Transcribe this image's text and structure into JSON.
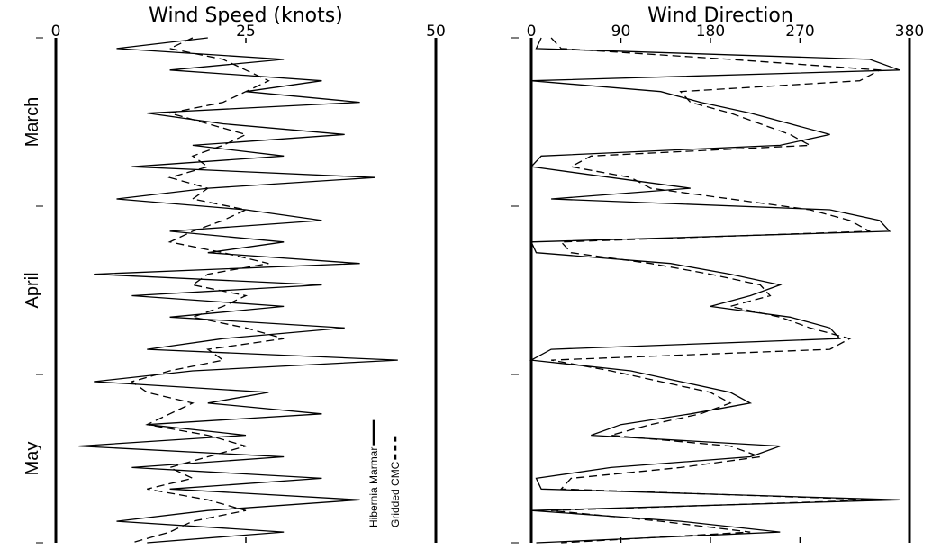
{
  "charts": [
    {
      "type": "line",
      "orientation": "vertical",
      "title": "Wind Speed (knots)",
      "categories": [
        "March",
        "April",
        "May"
      ],
      "xlim": [
        0,
        50
      ],
      "xticks": [
        0,
        25,
        50
      ],
      "series": [
        {
          "name": "Hibernia Marmar",
          "color": "#000000",
          "style": "solid",
          "values": [
            20,
            8,
            30,
            15,
            35,
            25,
            40,
            12,
            22,
            38,
            18,
            30,
            10,
            42,
            20,
            8,
            25,
            35,
            15,
            30,
            20,
            40,
            5,
            35,
            10,
            30,
            15,
            38,
            22,
            12,
            45,
            18,
            5,
            28,
            20,
            35,
            12,
            25,
            3,
            30,
            10,
            35,
            15,
            40,
            20,
            8,
            30,
            12
          ]
        },
        {
          "name": "Gridded CMC",
          "color": "#000000",
          "style": "dashed",
          "values": [
            18,
            15,
            22,
            25,
            28,
            25,
            22,
            15,
            20,
            25,
            22,
            18,
            20,
            15,
            20,
            18,
            25,
            22,
            18,
            15,
            22,
            28,
            20,
            18,
            25,
            22,
            18,
            25,
            30,
            20,
            22,
            15,
            10,
            12,
            18,
            15,
            12,
            20,
            25,
            20,
            15,
            18,
            12,
            20,
            25,
            18,
            15,
            10
          ]
        }
      ]
    },
    {
      "type": "line",
      "orientation": "vertical",
      "title": "Wind Direction",
      "xlim": [
        0,
        380
      ],
      "xticks": [
        0,
        90,
        180,
        270,
        380
      ],
      "series": [
        {
          "name": "Hibernia Marmar",
          "color": "#000000",
          "style": "solid",
          "values": [
            10,
            5,
            340,
            370,
            0,
            130,
            170,
            220,
            260,
            300,
            250,
            10,
            0,
            80,
            160,
            20,
            300,
            350,
            360,
            0,
            5,
            140,
            200,
            250,
            220,
            180,
            260,
            300,
            310,
            20,
            0,
            100,
            150,
            200,
            220,
            160,
            90,
            60,
            250,
            220,
            80,
            5,
            10,
            370,
            0,
            150,
            250,
            5
          ]
        },
        {
          "name": "Gridded CMC",
          "color": "#000000",
          "style": "dashed",
          "values": [
            20,
            30,
            200,
            350,
            330,
            150,
            160,
            200,
            230,
            260,
            280,
            60,
            40,
            100,
            120,
            200,
            280,
            320,
            340,
            30,
            40,
            120,
            180,
            230,
            240,
            200,
            250,
            280,
            320,
            300,
            20,
            80,
            130,
            180,
            200,
            170,
            120,
            80,
            200,
            230,
            150,
            40,
            30,
            350,
            20,
            130,
            220,
            30
          ]
        }
      ]
    }
  ]
}
